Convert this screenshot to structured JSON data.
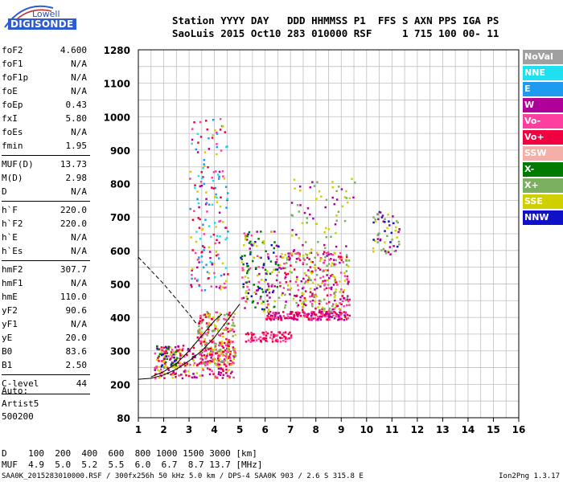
{
  "logo": {
    "line1": "Lowell",
    "line2": "DIGISONDE"
  },
  "header": {
    "line1": "Station YYYY DAY   DDD HHMMSS P1  FFS S AXN PPS IGA PS",
    "line2": "SaoLuis 2015 Oct10 283 010000 RSF     1 715 100 00- 11"
  },
  "params": [
    {
      "key": "foF2",
      "value": "4.600"
    },
    {
      "key": "foF1",
      "value": "N/A"
    },
    {
      "key": "foF1p",
      "value": "N/A"
    },
    {
      "key": "foE",
      "value": "N/A"
    },
    {
      "key": "foEp",
      "value": "0.43"
    },
    {
      "key": "fxI",
      "value": "5.80"
    },
    {
      "key": "foEs",
      "value": "N/A"
    },
    {
      "key": "fmin",
      "value": "1.95"
    },
    {
      "key": "MUF(D)",
      "value": "13.73"
    },
    {
      "key": "M(D)",
      "value": "2.98"
    },
    {
      "key": "D",
      "value": "N/A"
    },
    {
      "key": "h`F",
      "value": "220.0"
    },
    {
      "key": "h`F2",
      "value": "220.0"
    },
    {
      "key": "h`E",
      "value": "N/A"
    },
    {
      "key": "h`Es",
      "value": "N/A"
    },
    {
      "key": "hmF2",
      "value": "307.7"
    },
    {
      "key": "hmF1",
      "value": "N/A"
    },
    {
      "key": "hmE",
      "value": "110.0"
    },
    {
      "key": "yF2",
      "value": "90.6"
    },
    {
      "key": "yF1",
      "value": "N/A"
    },
    {
      "key": "yE",
      "value": "20.0"
    },
    {
      "key": "B0",
      "value": "83.6"
    },
    {
      "key": "B1",
      "value": "2.50"
    },
    {
      "key": "C-level",
      "value": "44"
    }
  ],
  "auto": {
    "line1": "Auto:",
    "line2": "Artist5",
    "line3": "500200"
  },
  "d_table": {
    "d_line": "D    100  200  400  600  800 1000 1500 3000 [km]",
    "muf_line": "MUF  4.9  5.0  5.2  5.5  6.0  6.7  8.7 13.7 [MHz]"
  },
  "footer": {
    "text": "SAA0K_2015283010000.RSF / 300fx256h 50 kHz 5.0 km / DPS-4 SAA0K 903 / 2.6 S 315.8 E",
    "version": "Ion2Png 1.3.17"
  },
  "legend": [
    {
      "label": "NoVal",
      "color": "#a0a0a0"
    },
    {
      "label": "NNE",
      "color": "#1ee0f0"
    },
    {
      "label": "E",
      "color": "#1e9bf0"
    },
    {
      "label": "W",
      "color": "#b0009a"
    },
    {
      "label": "Vo-",
      "color": "#ff3fa0"
    },
    {
      "label": "Vo+",
      "color": "#f00040"
    },
    {
      "label": "SSW",
      "color": "#f4b0a8"
    },
    {
      "label": "X-",
      "color": "#007a00"
    },
    {
      "label": "X+",
      "color": "#7ab060"
    },
    {
      "label": "SSE",
      "color": "#d0d000"
    },
    {
      "label": "NNW",
      "color": "#1010c8"
    }
  ],
  "chart_data": {
    "type": "scatter",
    "xlabel": "",
    "ylabel": "",
    "xlim": [
      1,
      16
    ],
    "ylim": [
      80,
      1280
    ],
    "x_ticks": [
      1,
      2,
      3,
      4,
      5,
      6,
      7,
      8,
      9,
      10,
      11,
      12,
      13,
      14,
      15,
      16
    ],
    "y_tick_labels": [
      80,
      200,
      300,
      400,
      500,
      600,
      700,
      800,
      900,
      1000,
      1100,
      1280
    ],
    "grid": true,
    "traces": [
      {
        "style": "solid",
        "x": [
          1.0,
          1.5,
          2.0,
          2.5,
          3.0,
          3.5,
          4.0,
          4.5,
          5.0
        ],
        "y": [
          215,
          218,
          228,
          245,
          270,
          300,
          340,
          390,
          440
        ]
      },
      {
        "style": "solid",
        "x": [
          1.5,
          2.0,
          2.5,
          3.0,
          3.5,
          4.0,
          4.3
        ],
        "y": [
          222,
          238,
          262,
          300,
          345,
          390,
          410
        ]
      },
      {
        "style": "dashed",
        "x": [
          1.0,
          1.5,
          2.0,
          2.5,
          3.0,
          3.3
        ],
        "y": [
          580,
          540,
          500,
          455,
          410,
          380
        ]
      }
    ],
    "echo_clusters": [
      {
        "x": [
          1.6,
          4.8
        ],
        "y": [
          220,
          320
        ],
        "density": 260,
        "colors": [
          "#f00040",
          "#ff3fa0",
          "#b0009a",
          "#d0d000"
        ]
      },
      {
        "x": [
          3.3,
          4.8
        ],
        "y": [
          260,
          420
        ],
        "density": 220,
        "colors": [
          "#f00040",
          "#ff3fa0",
          "#d0d000",
          "#7ab060"
        ]
      },
      {
        "x": [
          5.2,
          7.0
        ],
        "y": [
          330,
          360
        ],
        "density": 80,
        "colors": [
          "#f00040",
          "#ff3fa0"
        ]
      },
      {
        "x": [
          6.0,
          9.3
        ],
        "y": [
          395,
          420
        ],
        "density": 180,
        "colors": [
          "#f00040",
          "#ff3fa0",
          "#b0009a"
        ]
      },
      {
        "x": [
          6.5,
          9.3
        ],
        "y": [
          420,
          600
        ],
        "density": 300,
        "colors": [
          "#d0d000",
          "#f00040",
          "#ff3fa0",
          "#7ab060",
          "#b0009a"
        ]
      },
      {
        "x": [
          5.0,
          6.5
        ],
        "y": [
          420,
          660
        ],
        "density": 160,
        "colors": [
          "#b0009a",
          "#d0d000",
          "#ff3fa0",
          "#1010c8",
          "#007a00"
        ]
      },
      {
        "x": [
          3.0,
          4.5
        ],
        "y": [
          480,
          1000
        ],
        "density": 180,
        "colors": [
          "#f00040",
          "#ff3fa0",
          "#b0009a",
          "#d0d000",
          "#1ee0f0",
          "#1e9bf0"
        ]
      },
      {
        "x": [
          7.0,
          9.5
        ],
        "y": [
          600,
          820
        ],
        "density": 70,
        "colors": [
          "#d0d000",
          "#b0009a",
          "#7ab060"
        ]
      },
      {
        "x": [
          10.2,
          11.3
        ],
        "y": [
          590,
          720
        ],
        "density": 60,
        "colors": [
          "#d0d000",
          "#b0009a",
          "#7ab060",
          "#1010c8"
        ]
      },
      {
        "x": [
          1.7,
          2.5
        ],
        "y": [
          250,
          320
        ],
        "density": 60,
        "colors": [
          "#1010c8",
          "#f00040",
          "#007a00",
          "#d0d000"
        ]
      }
    ]
  }
}
